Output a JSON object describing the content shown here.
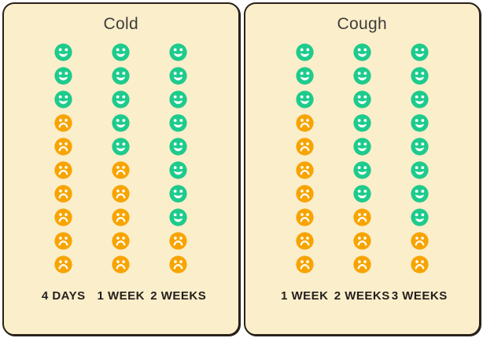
{
  "chart_data": [
    {
      "type": "bar",
      "subtype": "icon-array",
      "title": "Cold",
      "categories": [
        "4 DAYS",
        "1 WEEK",
        "2 WEEKS"
      ],
      "series": [
        {
          "name": "happy",
          "values": [
            3,
            5,
            8
          ]
        },
        {
          "name": "sad",
          "values": [
            7,
            5,
            2
          ]
        }
      ],
      "icons_per_category": 10,
      "icon_order": "happy-top-sad-bottom",
      "legend_position": "none"
    },
    {
      "type": "bar",
      "subtype": "icon-array",
      "title": "Cough",
      "categories": [
        "1 WEEK",
        "2 WEEKS",
        "3 WEEKS"
      ],
      "series": [
        {
          "name": "happy",
          "values": [
            3,
            7,
            8
          ]
        },
        {
          "name": "sad",
          "values": [
            7,
            3,
            2
          ]
        }
      ],
      "icons_per_category": 10,
      "icon_order": "happy-top-sad-bottom",
      "legend_position": "none"
    }
  ],
  "icons": {
    "happy": "happy-face-icon",
    "sad": "sad-face-icon"
  },
  "colors": {
    "happy": "#1ecb8c",
    "sad": "#f7a400",
    "card_bg": "#fbeecb",
    "card_border": "#29211a",
    "title_text": "#3f3c3a",
    "label_text": "#241f1c",
    "page_bg": "#ffffff"
  }
}
